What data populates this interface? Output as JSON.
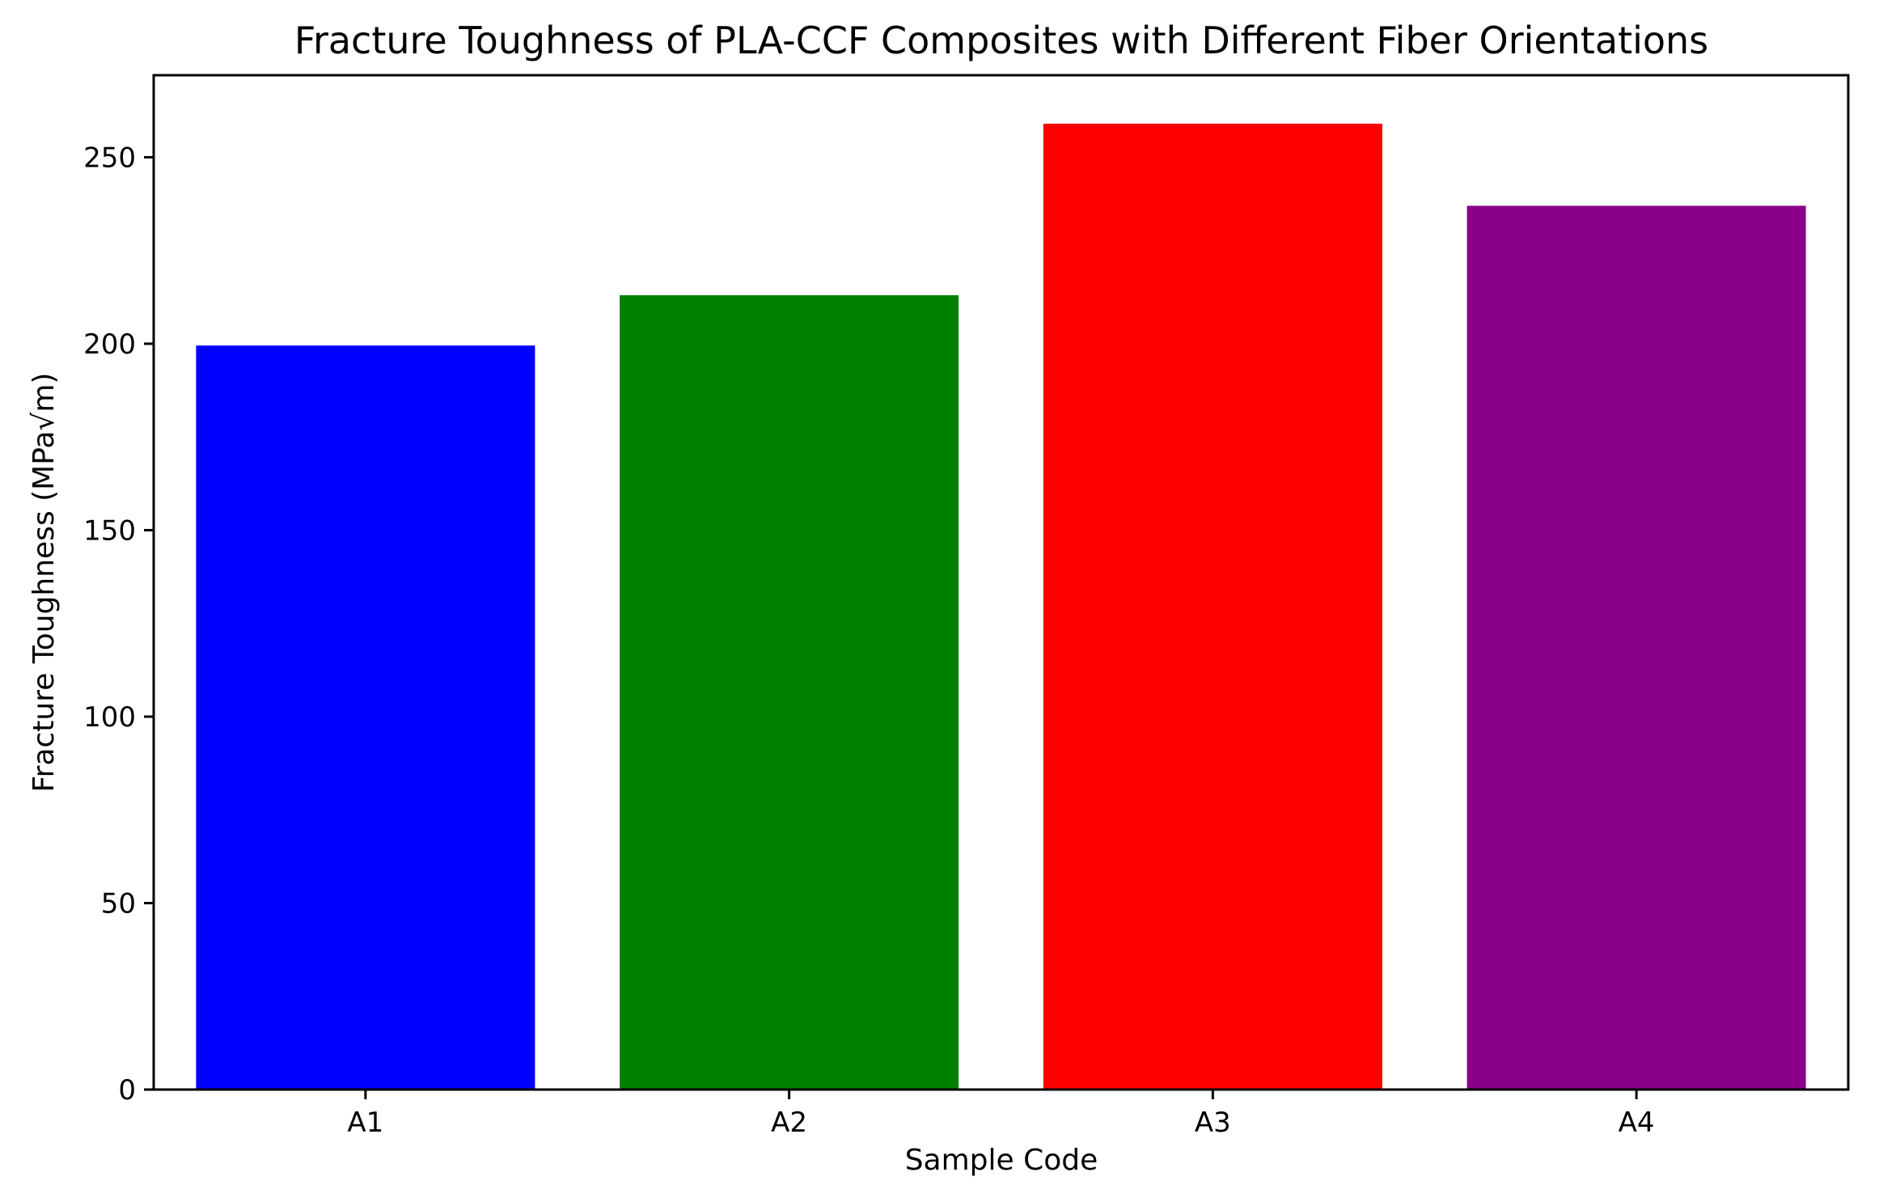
{
  "chart_data": {
    "type": "bar",
    "title": "Fracture Toughness of PLA-CCF Composites with Different Fiber Orientations",
    "xlabel": "Sample Code",
    "ylabel": "Fracture Toughness (MPa√m)",
    "categories": [
      "A1",
      "A2",
      "A3",
      "A4"
    ],
    "values": [
      199.5,
      213,
      259,
      237
    ],
    "colors": [
      "#0000ff",
      "#008000",
      "#ff0000",
      "#8b008b"
    ],
    "ylim": [
      0,
      272
    ],
    "yticks": [
      0,
      50,
      100,
      150,
      200,
      250
    ],
    "grid": false,
    "legend": "none"
  }
}
